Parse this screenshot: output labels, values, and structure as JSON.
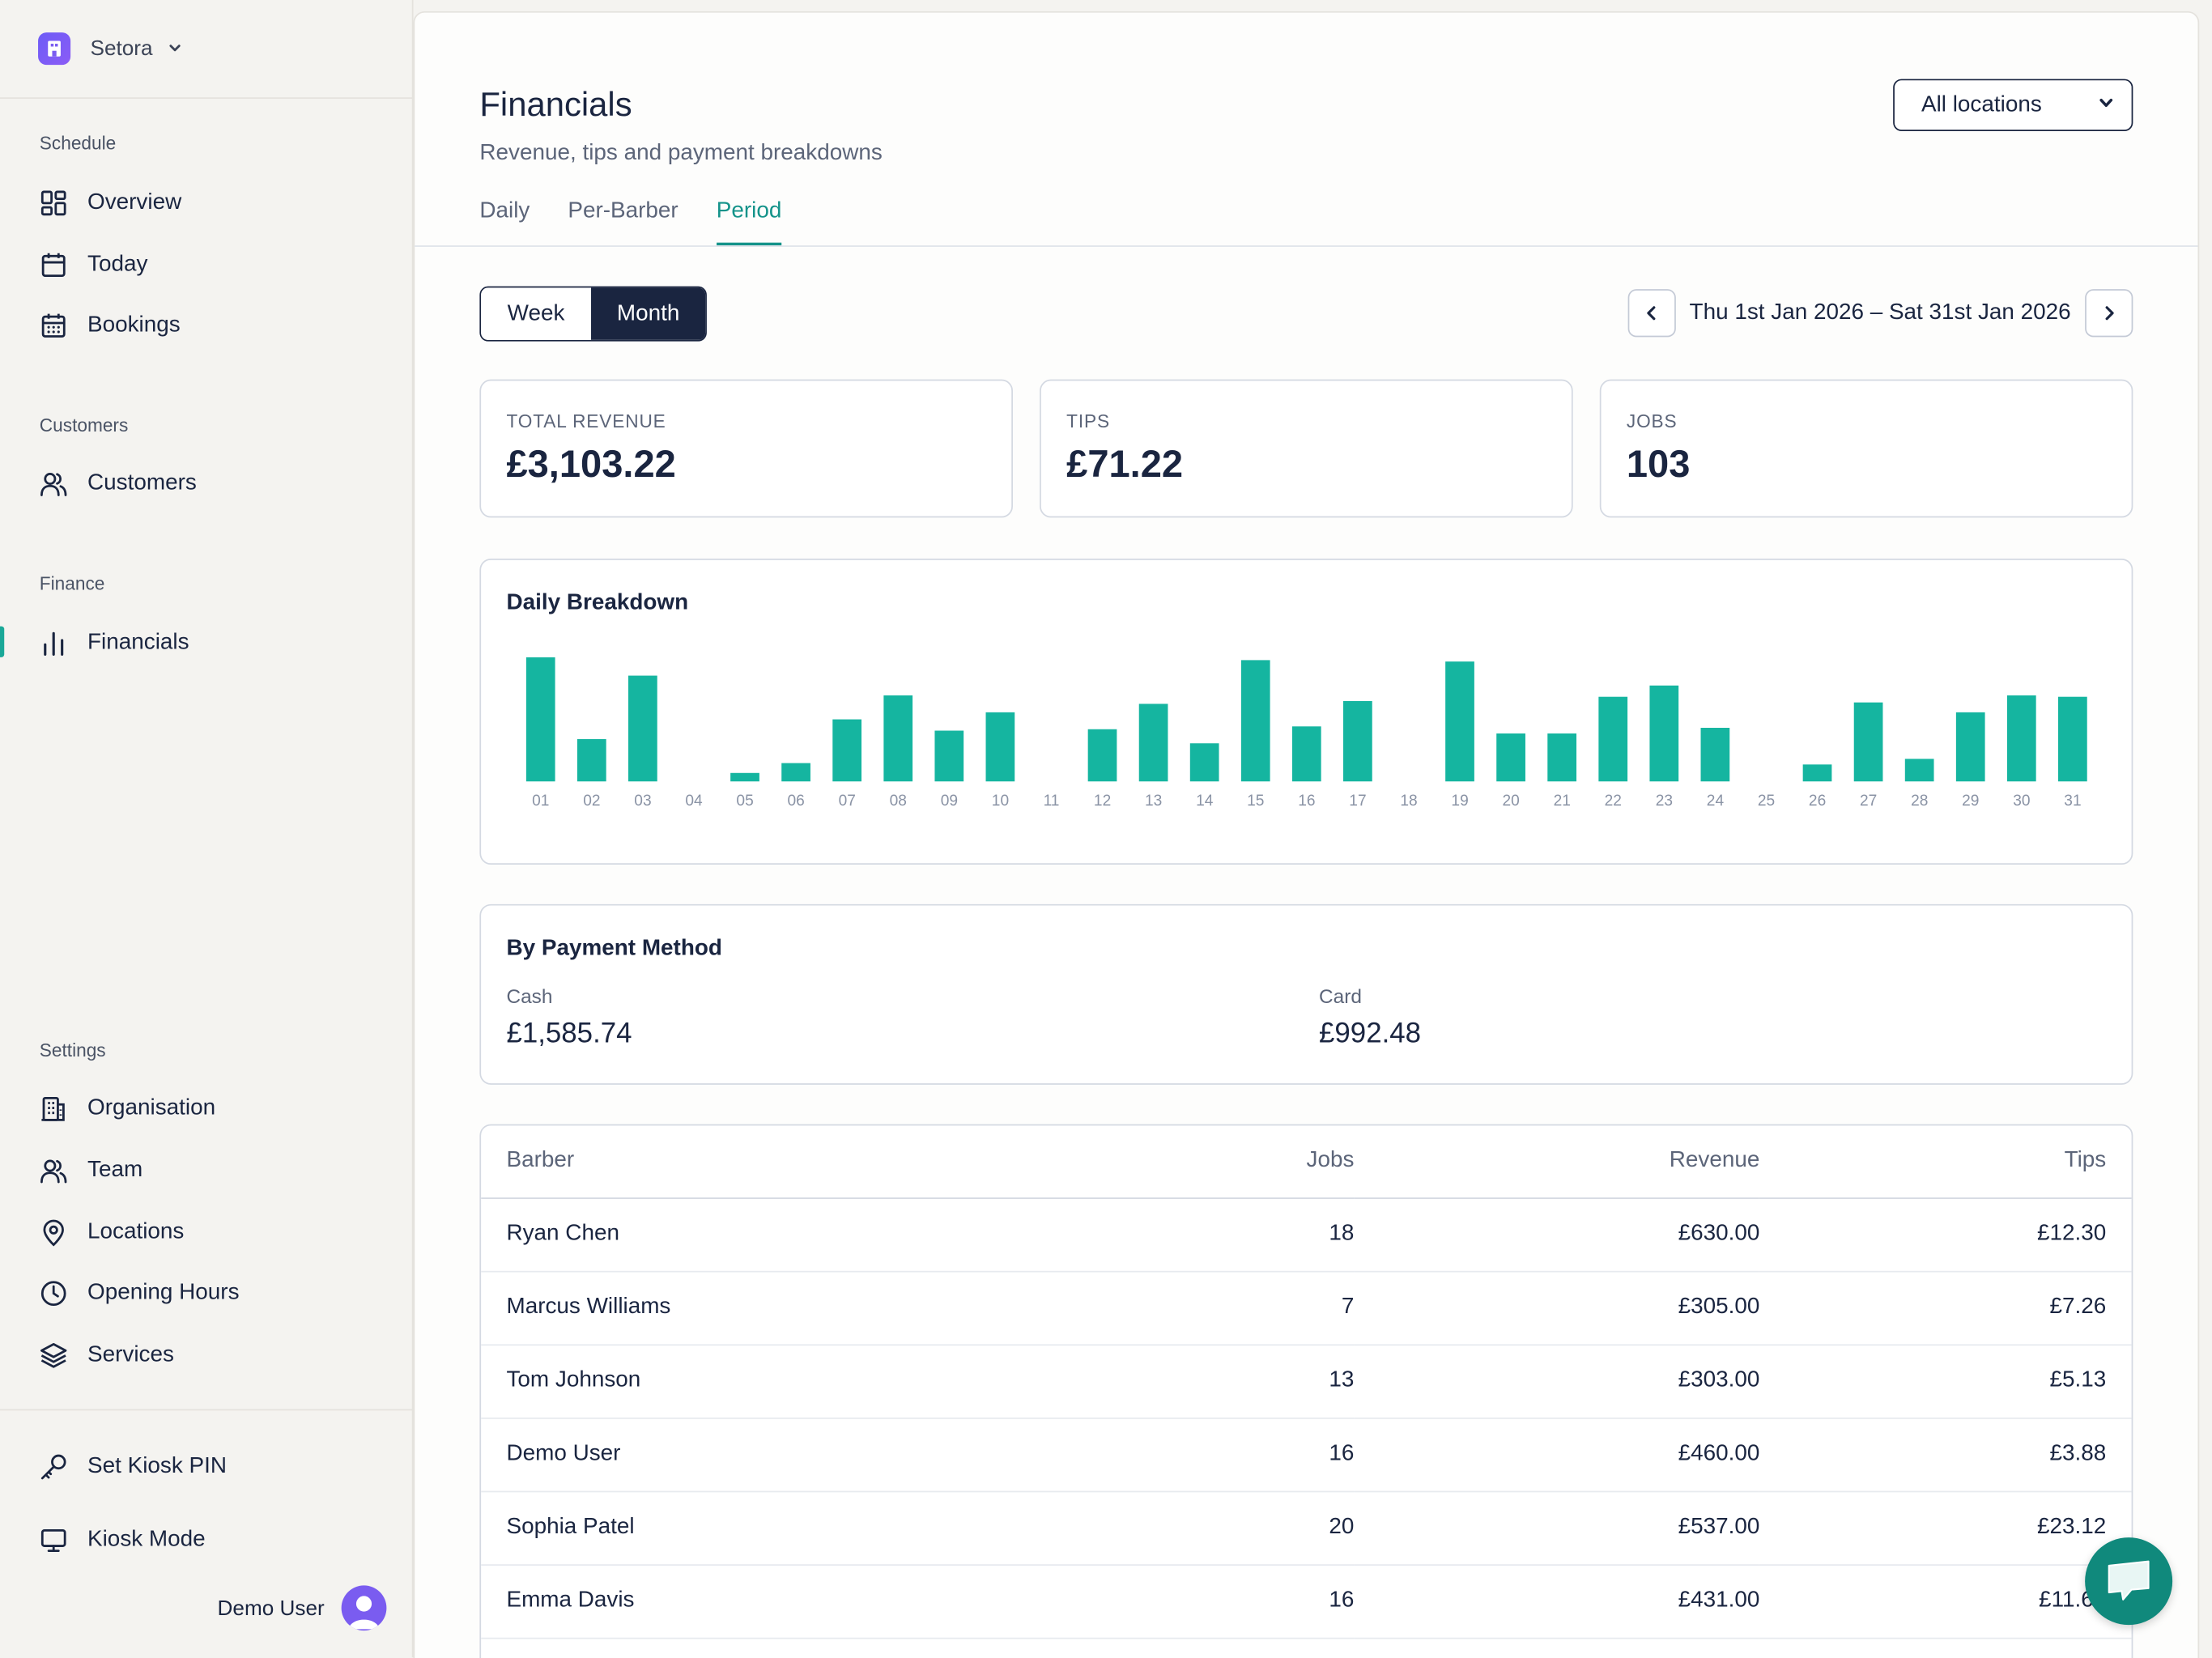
{
  "org": {
    "name": "Setora"
  },
  "sidebar": {
    "sections": [
      {
        "label": "Schedule"
      },
      {
        "label": "Customers"
      },
      {
        "label": "Finance"
      },
      {
        "label": "Settings"
      }
    ],
    "items": {
      "overview": "Overview",
      "today": "Today",
      "bookings": "Bookings",
      "customers": "Customers",
      "financials": "Financials",
      "organisation": "Organisation",
      "team": "Team",
      "locations": "Locations",
      "opening_hours": "Opening Hours",
      "services": "Services",
      "kiosk_pin": "Set Kiosk PIN",
      "kiosk_mode": "Kiosk Mode"
    },
    "active_item": "financials",
    "user": {
      "name": "Demo User"
    }
  },
  "header": {
    "title": "Financials",
    "subtitle": "Revenue, tips and payment breakdowns",
    "location_select": {
      "value": "All locations"
    }
  },
  "tabs": [
    {
      "label": "Daily",
      "active": false
    },
    {
      "label": "Per-Barber",
      "active": false
    },
    {
      "label": "Period",
      "active": true
    }
  ],
  "period": {
    "toggle": [
      {
        "label": "Week",
        "active": false
      },
      {
        "label": "Month",
        "active": true
      }
    ],
    "range_label": "Thu 1st Jan 2026 – Sat 31st Jan 2026"
  },
  "stats": [
    {
      "label": "TOTAL REVENUE",
      "value": "£3,103.22"
    },
    {
      "label": "TIPS",
      "value": "£71.22"
    },
    {
      "label": "JOBS",
      "value": "103"
    }
  ],
  "chart_data": {
    "type": "bar",
    "title": "Daily Breakdown",
    "categories": [
      "01",
      "02",
      "03",
      "04",
      "05",
      "06",
      "07",
      "08",
      "09",
      "10",
      "11",
      "12",
      "13",
      "14",
      "15",
      "16",
      "17",
      "18",
      "19",
      "20",
      "21",
      "22",
      "23",
      "24",
      "25",
      "26",
      "27",
      "28",
      "29",
      "30",
      "31"
    ],
    "values": [
      88,
      30,
      75,
      0,
      6,
      13,
      44,
      61,
      36,
      49,
      0,
      37,
      55,
      27,
      86,
      39,
      57,
      0,
      85,
      34,
      34,
      60,
      68,
      38,
      0,
      12,
      56,
      16,
      49,
      61,
      60
    ],
    "ylim": [
      0,
      100
    ],
    "grid": false,
    "color": "#15b5a0"
  },
  "payment_methods": {
    "title": "By Payment Method",
    "items": [
      {
        "label": "Cash",
        "value": "£1,585.74"
      },
      {
        "label": "Card",
        "value": "£992.48"
      }
    ]
  },
  "barber_table": {
    "headers": [
      "Barber",
      "Jobs",
      "Revenue",
      "Tips"
    ],
    "rows": [
      [
        "Ryan Chen",
        "18",
        "£630.00",
        "£12.30"
      ],
      [
        "Marcus Williams",
        "7",
        "£305.00",
        "£7.26"
      ],
      [
        "Tom Johnson",
        "13",
        "£303.00",
        "£5.13"
      ],
      [
        "Demo User",
        "16",
        "£460.00",
        "£3.88"
      ],
      [
        "Sophia Patel",
        "20",
        "£537.00",
        "£23.12"
      ],
      [
        "Emma Davis",
        "16",
        "£431.00",
        "£11.61"
      ]
    ]
  },
  "colors": {
    "accent": "#14938a",
    "bar": "#15b5a0",
    "navy": "#1a2540",
    "fab": "#10897c"
  }
}
